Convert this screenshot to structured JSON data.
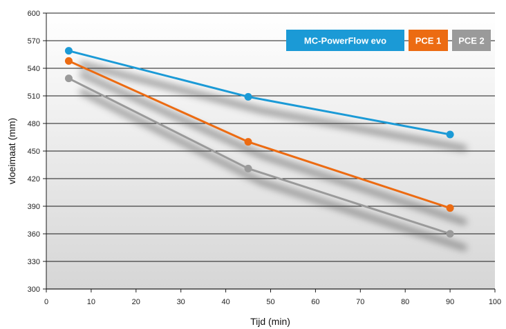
{
  "chart_data": {
    "type": "line",
    "xlabel": "Tijd (min)",
    "ylabel": "vloeimaat (mm)",
    "xlim": [
      0,
      100
    ],
    "ylim": [
      300,
      600
    ],
    "xticks": [
      0,
      10,
      20,
      30,
      40,
      50,
      60,
      70,
      80,
      90,
      100
    ],
    "yticks": [
      300,
      330,
      360,
      390,
      420,
      450,
      480,
      510,
      540,
      570,
      600
    ],
    "grid": true,
    "legend_position": "top-right",
    "series": [
      {
        "name": "MC-PowerFlow evo",
        "color": "#1b9ad6",
        "x": [
          5,
          45,
          90
        ],
        "y": [
          559,
          509,
          468
        ]
      },
      {
        "name": "PCE 1",
        "color": "#ec6b12",
        "x": [
          5,
          45,
          90
        ],
        "y": [
          548,
          460,
          388
        ]
      },
      {
        "name": "PCE 2",
        "color": "#9a9a9a",
        "x": [
          5,
          45,
          90
        ],
        "y": [
          529,
          431,
          360
        ]
      }
    ]
  }
}
